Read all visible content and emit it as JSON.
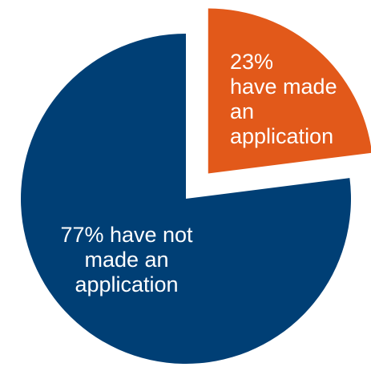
{
  "chart_data": {
    "type": "pie",
    "title": "",
    "slices": [
      {
        "label": "23%\nhave made\nan\napplication",
        "value": 23,
        "color": "#E2591A",
        "exploded": true
      },
      {
        "label": "77% have not\nmade an\napplication",
        "value": 77,
        "color": "#003F75",
        "exploded": false
      }
    ]
  }
}
